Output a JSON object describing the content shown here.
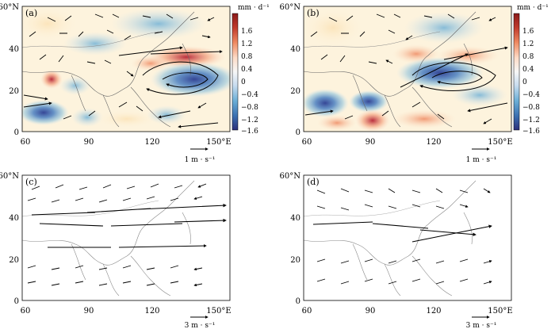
{
  "axes": {
    "x_ticks": [
      "60",
      "90",
      "120",
      "150°E"
    ],
    "y_ticks": [
      "0",
      "20",
      "40",
      "60°N"
    ]
  },
  "panels": [
    {
      "label": "(a)",
      "has_shading": true,
      "colorbar": true,
      "ref_vector": "1 m · s⁻¹",
      "anomaly": "a"
    },
    {
      "label": "(b)",
      "has_shading": true,
      "colorbar": true,
      "ref_vector": "1 m · s⁻¹",
      "anomaly": "b"
    },
    {
      "label": "(c)",
      "has_shading": false,
      "colorbar": false,
      "ref_vector": "3 m · s⁻¹",
      "anomaly": "c"
    },
    {
      "label": "(d)",
      "has_shading": false,
      "colorbar": false,
      "ref_vector": "3 m · s⁻¹",
      "anomaly": "d"
    }
  ],
  "colorbar": {
    "unit": "mm · d⁻¹",
    "labels": [
      "1.6",
      "1.2",
      "0.8",
      "0.4",
      "0",
      "−0.4",
      "−0.8",
      "−1.2",
      "−1.6"
    ],
    "colors": [
      "#b2182b",
      "#d6604d",
      "#f4a582",
      "#fddbc7",
      "#f7f7f7",
      "#d1e5f0",
      "#92c5de",
      "#4393c3",
      "#2166ac",
      "#313695"
    ]
  }
}
